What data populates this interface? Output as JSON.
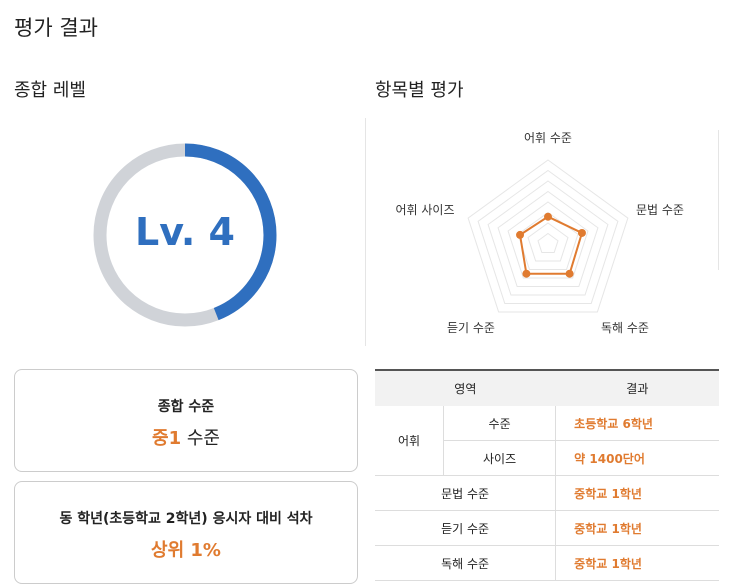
{
  "title": "평가 결과",
  "overall": {
    "heading": "종합 레벨",
    "level_label": "Lv. 4",
    "progress": 0.44,
    "colors": {
      "fill": "#2f6fbf",
      "track": "#d0d3d8"
    }
  },
  "radar": {
    "heading": "항목별 평가",
    "axes": [
      "어휘 수준",
      "문법 수준",
      "독해 수준",
      "듣기 수준",
      "어휘 사이즈"
    ],
    "levels": 8,
    "values": [
      2.6,
      3.4,
      3.5,
      3.5,
      2.8
    ],
    "color": "#e07b30"
  },
  "summary": {
    "title": "종합 수준",
    "value_em": "중1",
    "value_rest": " 수준"
  },
  "rank": {
    "title": "동 학년(초등학교 2학년) 응시자 대비 석차",
    "value": "상위 1%"
  },
  "table": {
    "headers": [
      "영역",
      "결과"
    ],
    "vocab": "어휘",
    "rows": [
      {
        "sub": "수준",
        "result": "초등학교 6학년"
      },
      {
        "sub": "사이즈",
        "result": "약 1400단어"
      },
      {
        "label": "문법 수준",
        "result": "중학교 1학년"
      },
      {
        "label": "듣기 수준",
        "result": "중학교 1학년"
      },
      {
        "label": "독해 수준",
        "result": "중학교 1학년"
      }
    ]
  }
}
